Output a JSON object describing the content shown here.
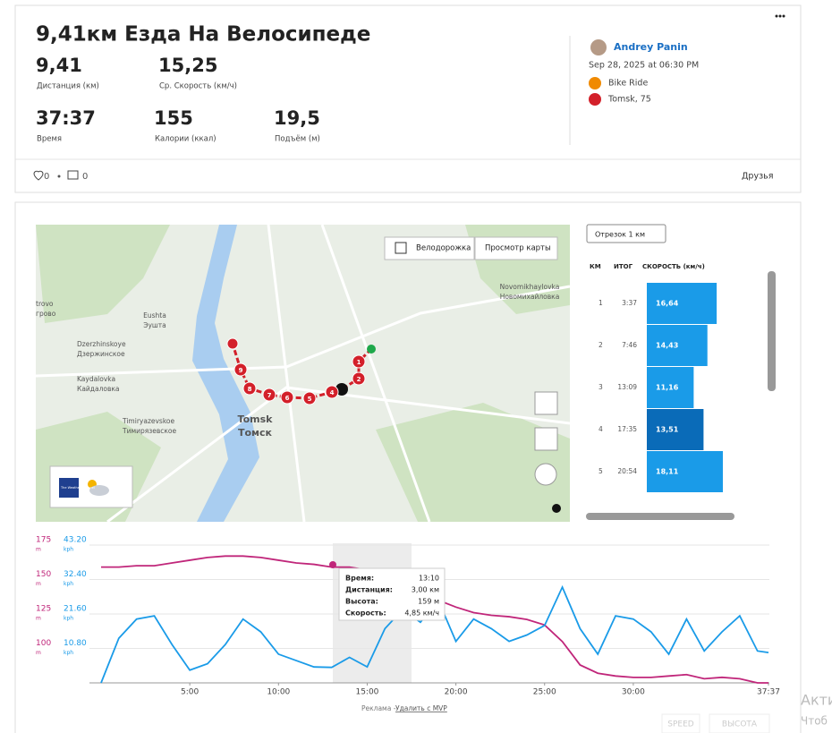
{
  "header": {
    "title": "9,41км Езда На Велосипеде",
    "stats": [
      {
        "value": "9,41",
        "label": "Дистанция (км)"
      },
      {
        "value": "15,25",
        "label": "Ср. Скорость (км/ч)"
      },
      {
        "value": "37:37",
        "label": "Время"
      },
      {
        "value": "155",
        "label": "Калории (ккал)"
      },
      {
        "value": "19,5",
        "label": "Подъём (м)"
      }
    ]
  },
  "athlete": {
    "name": "Andrey Panin",
    "date": "Sep 28, 2025 at 06:30 PM",
    "activity": "Bike Ride",
    "location": "Tomsk, 75"
  },
  "social": {
    "likes": "0",
    "comments": "0",
    "visibility": "Друзья"
  },
  "map": {
    "bike_lane": "Велодорожка",
    "view": "Просмотр карты",
    "places": [
      [
        "trovo",
        "грово"
      ],
      [
        "Eushta",
        "Эушта"
      ],
      [
        "Dzerzhinskoye",
        "Дзержинское"
      ],
      [
        "Kaydalovka",
        "Кайдаловка"
      ],
      [
        "Timiryazevskoe",
        "Тимирязевское"
      ],
      [
        "Tomsk",
        "Томск"
      ],
      [
        "Novomikhaylovka",
        "Новомихайловка"
      ]
    ],
    "markers": [
      "1",
      "2",
      "4",
      "5",
      "6",
      "7",
      "8",
      "9"
    ],
    "weather": "The Weather Channel"
  },
  "splits": {
    "dropdown": "Отрезок 1 км",
    "columns": [
      "КМ",
      "ИТОГ",
      "СКОРОСТЬ (км/ч)"
    ],
    "km": [
      1,
      2,
      3,
      4,
      5
    ],
    "total": [
      "3:37",
      "7:46",
      "13:09",
      "17:35",
      "20:54"
    ],
    "speed": [
      16.64,
      14.43,
      11.16,
      13.51,
      18.11
    ],
    "speed_labels": [
      "16,64",
      "14,43",
      "11,16",
      "13,51",
      "18,11"
    ]
  },
  "chart_data": {
    "type": "line",
    "x": [
      0,
      1,
      2,
      3,
      4,
      5,
      6,
      7,
      8,
      9,
      10,
      11,
      12,
      13,
      14,
      15,
      16,
      17,
      18,
      19,
      20,
      21,
      22,
      23,
      24,
      25,
      26,
      27,
      28,
      29,
      30,
      31,
      32,
      33,
      34,
      35,
      36,
      37,
      37.62
    ],
    "xlim": [
      0,
      37.62
    ],
    "xticks": [
      {
        "value": 5,
        "label": "5:00"
      },
      {
        "value": 10,
        "label": "10:00"
      },
      {
        "value": 15,
        "label": "15:00"
      },
      {
        "value": 20,
        "label": "20:00"
      },
      {
        "value": 25,
        "label": "25:00"
      },
      {
        "value": 30,
        "label": "30:00"
      },
      {
        "value": 37.62,
        "label": "37:37"
      }
    ],
    "ylim": [
      75,
      175
    ],
    "yticks": [
      100,
      125,
      150,
      175
    ],
    "y_unit": "m",
    "y2lim": [
      0,
      43.2
    ],
    "y2ticks": [
      {
        "value": 10.8,
        "label": "10.80"
      },
      {
        "value": 21.6,
        "label": "21.60"
      },
      {
        "value": 32.4,
        "label": "32.40"
      },
      {
        "value": 43.2,
        "label": "43.20"
      }
    ],
    "y2_unit": "kph",
    "grid": true,
    "series": [
      {
        "name": "ВЫСОТА",
        "color": "#c0267a",
        "values": [
          159,
          159,
          160,
          160,
          162,
          164,
          166,
          167,
          167,
          166,
          164,
          162,
          161,
          159,
          159,
          157,
          154,
          149,
          143,
          135,
          130,
          126,
          124,
          123,
          121,
          117,
          105,
          88,
          82,
          80,
          79,
          79,
          80,
          81,
          78,
          79,
          78,
          75,
          75
        ]
      },
      {
        "name": "SPEED",
        "color": "#1a9be8",
        "axis": "y2",
        "values": [
          0,
          14,
          20,
          21,
          12,
          4,
          6,
          12,
          20,
          16,
          9,
          7,
          5,
          4.85,
          8,
          5,
          17,
          23,
          19,
          26,
          13,
          20,
          17,
          13,
          15,
          18,
          30,
          17,
          9,
          21,
          20,
          16,
          9,
          20,
          10,
          16,
          21,
          10,
          9.5
        ]
      }
    ],
    "tooltip": [
      [
        "Время:",
        "13:10"
      ],
      [
        "Дистанция:",
        "3,00 км"
      ],
      [
        "Высота:",
        "159 м"
      ],
      [
        "Скорость:",
        "4,85 км/ч"
      ]
    ]
  },
  "footer": {
    "ad": "Реклама -",
    "remove": "Удалить с MVP"
  },
  "watermark": [
    "Акти",
    "Чтоб"
  ]
}
